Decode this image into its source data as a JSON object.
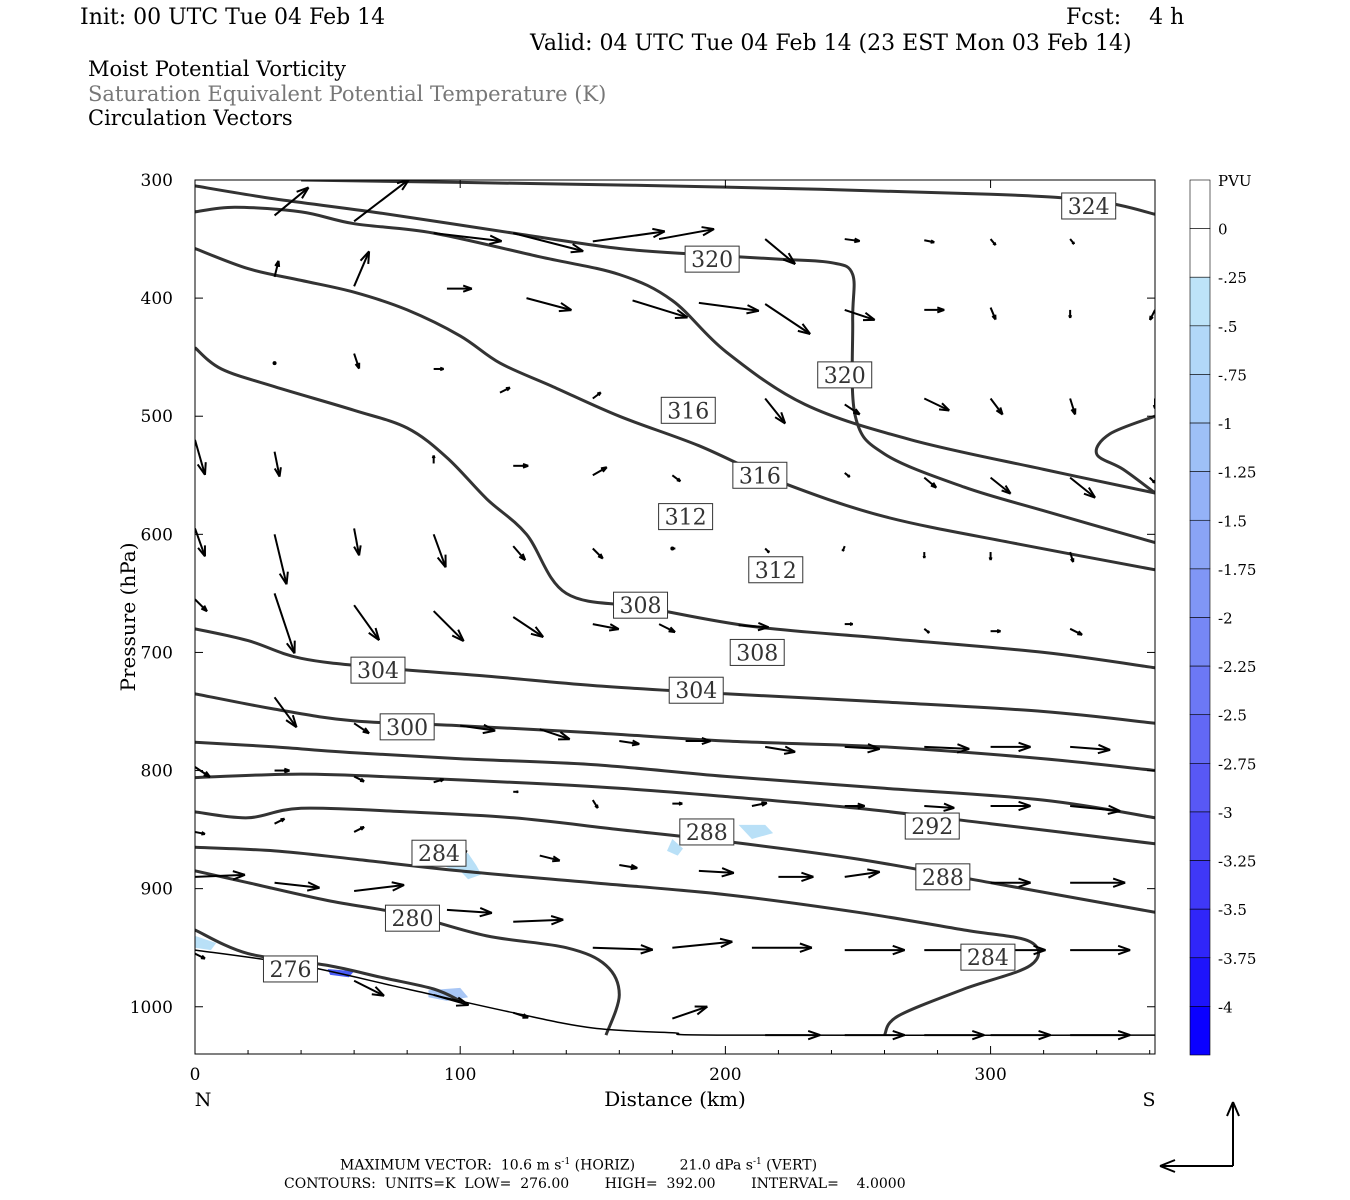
{
  "header": {
    "init": "Init: 00 UTC Tue 04 Feb 14",
    "fcst": "Fcst:    4 h",
    "valid": "Valid: 04 UTC Tue 04 Feb 14 (23 EST Mon 03 Feb 14)",
    "line1": "Moist Potential Vorticity",
    "line2": "Saturation Equivalent Potential Temperature (K)",
    "line3": "Circulation Vectors"
  },
  "colors": {
    "contour": "#333333",
    "ground": "#000000",
    "arrow": "#000000",
    "pv_light": "#b9e0f7",
    "pv_dark": "#0000ff"
  },
  "chart_data": {
    "type": "cross-section",
    "xlabel": "Distance (km)",
    "ylabel": "Pressure (hPa)",
    "xlim": [
      0,
      362
    ],
    "ylim": [
      300,
      1040
    ],
    "x_ticks": [
      {
        "label": "0",
        "value": 0
      },
      {
        "label": "100",
        "value": 100
      },
      {
        "label": "200",
        "value": 200
      },
      {
        "label": "300",
        "value": 300
      }
    ],
    "y_ticks": [
      {
        "label": "300",
        "value": 300
      },
      {
        "label": "400",
        "value": 400
      },
      {
        "label": "500",
        "value": 500
      },
      {
        "label": "600",
        "value": 600
      },
      {
        "label": "700",
        "value": 700
      },
      {
        "label": "800",
        "value": 800
      },
      {
        "label": "900",
        "value": 900
      },
      {
        "label": "1000",
        "value": 1000
      }
    ],
    "x_end_labels": {
      "left": "N",
      "right": "S"
    },
    "colorbar": {
      "units": "PVU",
      "labels": [
        "0",
        "-.25",
        "-.5",
        "-.75",
        "-1",
        "-1.25",
        "-1.5",
        "-1.75",
        "-2",
        "-2.25",
        "-2.5",
        "-2.75",
        "-3",
        "-3.25",
        "-3.5",
        "-3.75",
        "-4"
      ],
      "colors": [
        "#ffffff",
        "#ffffff",
        "#bde3f8",
        "#b2d8f8",
        "#a8cdf8",
        "#9ec0f7",
        "#94b2f7",
        "#8aa4f6",
        "#8096f6",
        "#7687f5",
        "#6c78f5",
        "#6268f5",
        "#5858f5",
        "#4c48f5",
        "#3f38f7",
        "#3026f9",
        "#1e14fb",
        "#0a00ff"
      ]
    },
    "contours": [
      {
        "value": 324,
        "label": "324",
        "label_at": [
          337,
          322
        ],
        "points": [
          [
            40,
            300
          ],
          [
            100,
            302
          ],
          [
            200,
            306
          ],
          [
            300,
            312
          ],
          [
            340,
            318
          ],
          [
            362,
            329
          ]
        ]
      },
      {
        "value": 320,
        "label": "320",
        "label_at": [
          195,
          367
        ],
        "points": [
          [
            0,
            305
          ],
          [
            30,
            316
          ],
          [
            70,
            328
          ],
          [
            120,
            345
          ],
          [
            160,
            358
          ],
          [
            190,
            363
          ],
          [
            220,
            367
          ],
          [
            240,
            370
          ],
          [
            248,
            380
          ],
          [
            248,
            420
          ],
          [
            249,
            500
          ],
          [
            260,
            532
          ],
          [
            290,
            560
          ],
          [
            320,
            580
          ],
          [
            362,
            607
          ]
        ]
      },
      {
        "value": 320,
        "label": "320",
        "label_at": [
          245,
          465
        ],
        "points": [
          [
            362,
            500
          ],
          [
            345,
            515
          ],
          [
            340,
            532
          ],
          [
            350,
            545
          ],
          [
            362,
            565
          ]
        ]
      },
      {
        "value": 316,
        "label": "316",
        "label_at": [
          186,
          495
        ],
        "points": [
          [
            0,
            327
          ],
          [
            15,
            323
          ],
          [
            40,
            327
          ],
          [
            60,
            337
          ],
          [
            90,
            345
          ],
          [
            130,
            365
          ],
          [
            160,
            380
          ],
          [
            180,
            402
          ],
          [
            200,
            445
          ],
          [
            230,
            490
          ],
          [
            270,
            520
          ],
          [
            320,
            545
          ],
          [
            362,
            565
          ]
        ]
      },
      {
        "value": 316,
        "label": "316",
        "label_at": [
          213,
          550
        ],
        "points": []
      },
      {
        "value": 312,
        "label": "312",
        "label_at": [
          185,
          585
        ],
        "points": [
          [
            0,
            358
          ],
          [
            20,
            375
          ],
          [
            40,
            385
          ],
          [
            60,
            395
          ],
          [
            80,
            410
          ],
          [
            100,
            432
          ],
          [
            115,
            455
          ],
          [
            135,
            475
          ],
          [
            160,
            500
          ],
          [
            190,
            525
          ],
          [
            220,
            555
          ],
          [
            260,
            585
          ],
          [
            310,
            608
          ],
          [
            362,
            630
          ]
        ]
      },
      {
        "value": 312,
        "label": "312",
        "label_at": [
          219,
          630
        ],
        "points": []
      },
      {
        "value": 308,
        "label": "308",
        "label_at": [
          168,
          660
        ],
        "points": [
          [
            0,
            442
          ],
          [
            10,
            460
          ],
          [
            30,
            475
          ],
          [
            60,
            495
          ],
          [
            80,
            510
          ],
          [
            95,
            535
          ],
          [
            110,
            570
          ],
          [
            125,
            600
          ],
          [
            140,
            650
          ],
          [
            170,
            662
          ],
          [
            210,
            678
          ],
          [
            260,
            688
          ],
          [
            320,
            700
          ],
          [
            362,
            713
          ]
        ]
      },
      {
        "value": 308,
        "label": "308",
        "label_at": [
          212,
          700
        ],
        "points": []
      },
      {
        "value": 304,
        "label": "304",
        "label_at": [
          69,
          715
        ],
        "points": [
          [
            0,
            680
          ],
          [
            20,
            690
          ],
          [
            40,
            705
          ],
          [
            70,
            713
          ],
          [
            110,
            720
          ],
          [
            150,
            728
          ],
          [
            200,
            735
          ],
          [
            260,
            742
          ],
          [
            320,
            750
          ],
          [
            362,
            760
          ]
        ]
      },
      {
        "value": 304,
        "label": "304",
        "label_at": [
          189,
          732
        ],
        "points": []
      },
      {
        "value": 300,
        "label": "300",
        "label_at": [
          80,
          763
        ],
        "points": [
          [
            0,
            735
          ],
          [
            30,
            748
          ],
          [
            60,
            758
          ],
          [
            100,
            762
          ],
          [
            150,
            768
          ],
          [
            200,
            775
          ],
          [
            260,
            780
          ],
          [
            320,
            790
          ],
          [
            362,
            800
          ]
        ]
      },
      {
        "value": 296,
        "label": "",
        "label_at": null,
        "points": [
          [
            0,
            776
          ],
          [
            30,
            780
          ],
          [
            60,
            785
          ],
          [
            100,
            790
          ],
          [
            150,
            795
          ],
          [
            200,
            805
          ],
          [
            260,
            815
          ],
          [
            320,
            825
          ],
          [
            362,
            840
          ]
        ]
      },
      {
        "value": 292,
        "label": "292",
        "label_at": [
          278,
          847
        ],
        "points": [
          [
            0,
            806
          ],
          [
            40,
            803
          ],
          [
            80,
            806
          ],
          [
            120,
            810
          ],
          [
            160,
            815
          ],
          [
            200,
            822
          ],
          [
            250,
            832
          ],
          [
            300,
            845
          ],
          [
            362,
            862
          ]
        ]
      },
      {
        "value": 288,
        "label": "288",
        "label_at": [
          193,
          852
        ],
        "points": [
          [
            0,
            835
          ],
          [
            20,
            840
          ],
          [
            40,
            832
          ],
          [
            80,
            835
          ],
          [
            120,
            840
          ],
          [
            160,
            850
          ],
          [
            200,
            860
          ],
          [
            250,
            875
          ],
          [
            300,
            895
          ],
          [
            362,
            920
          ]
        ]
      },
      {
        "value": 288,
        "label": "288",
        "label_at": [
          282,
          890
        ],
        "points": []
      },
      {
        "value": 284,
        "label": "284",
        "label_at": [
          92,
          870
        ],
        "points": [
          [
            0,
            865
          ],
          [
            30,
            868
          ],
          [
            60,
            875
          ],
          [
            100,
            885
          ],
          [
            150,
            895
          ],
          [
            200,
            905
          ],
          [
            250,
            920
          ],
          [
            290,
            935
          ],
          [
            315,
            945
          ],
          [
            315,
            965
          ],
          [
            290,
            985
          ],
          [
            265,
            1008
          ],
          [
            260,
            1024
          ]
        ]
      },
      {
        "value": 284,
        "label": "284",
        "label_at": [
          299,
          958
        ],
        "points": []
      },
      {
        "value": 280,
        "label": "280",
        "label_at": [
          82,
          925
        ],
        "points": [
          [
            0,
            885
          ],
          [
            20,
            895
          ],
          [
            50,
            910
          ],
          [
            80,
            922
          ],
          [
            110,
            940
          ],
          [
            140,
            950
          ],
          [
            155,
            965
          ],
          [
            160,
            990
          ],
          [
            155,
            1024
          ]
        ]
      },
      {
        "value": 276,
        "label": "276",
        "label_at": [
          36,
          968
        ],
        "points": [
          [
            0,
            935
          ],
          [
            20,
            955
          ],
          [
            50,
            965
          ],
          [
            70,
            975
          ],
          [
            90,
            985
          ],
          [
            100,
            995
          ]
        ]
      }
    ],
    "ground": [
      [
        0,
        952
      ],
      [
        40,
        965
      ],
      [
        80,
        985
      ],
      [
        120,
        1005
      ],
      [
        150,
        1018
      ],
      [
        180,
        1022
      ],
      [
        200,
        1024
      ],
      [
        362,
        1024
      ]
    ],
    "pv_patches": [
      {
        "level": "-0.5",
        "points": [
          [
            0,
            940
          ],
          [
            8,
            946
          ],
          [
            6,
            952
          ],
          [
            0,
            950
          ]
        ]
      },
      {
        "level": "-0.5",
        "points": [
          [
            92,
            875
          ],
          [
            99,
            868
          ],
          [
            103,
            870
          ],
          [
            106,
            880
          ],
          [
            108,
            888
          ],
          [
            103,
            892
          ],
          [
            100,
            885
          ],
          [
            95,
            882
          ]
        ]
      },
      {
        "level": "-0.5",
        "points": [
          [
            180,
            858
          ],
          [
            184,
            866
          ],
          [
            182,
            872
          ],
          [
            178,
            868
          ]
        ]
      },
      {
        "level": "-0.5",
        "points": [
          [
            205,
            846
          ],
          [
            215,
            846
          ],
          [
            218,
            853
          ],
          [
            210,
            858
          ]
        ]
      },
      {
        "level": "-1",
        "points": [
          [
            88,
            986
          ],
          [
            100,
            984
          ],
          [
            103,
            992
          ],
          [
            95,
            995
          ],
          [
            88,
            992
          ]
        ]
      },
      {
        "level": "-2",
        "points": [
          [
            50,
            968
          ],
          [
            60,
            970
          ],
          [
            58,
            975
          ],
          [
            51,
            973
          ]
        ]
      }
    ],
    "max_vector": {
      "horiz": "MAXIMUM VECTOR:  10.6 m s",
      "horiz_exp": "-1",
      "horiz_tail": " (HORIZ)",
      "vert": "21.0 dPa s",
      "vert_exp": "-1",
      "vert_tail": " (VERT)"
    },
    "contour_info": "CONTOURS:  UNITS=K  LOW=  276.00        HIGH=  392.00        INTERVAL=    4.0000"
  }
}
